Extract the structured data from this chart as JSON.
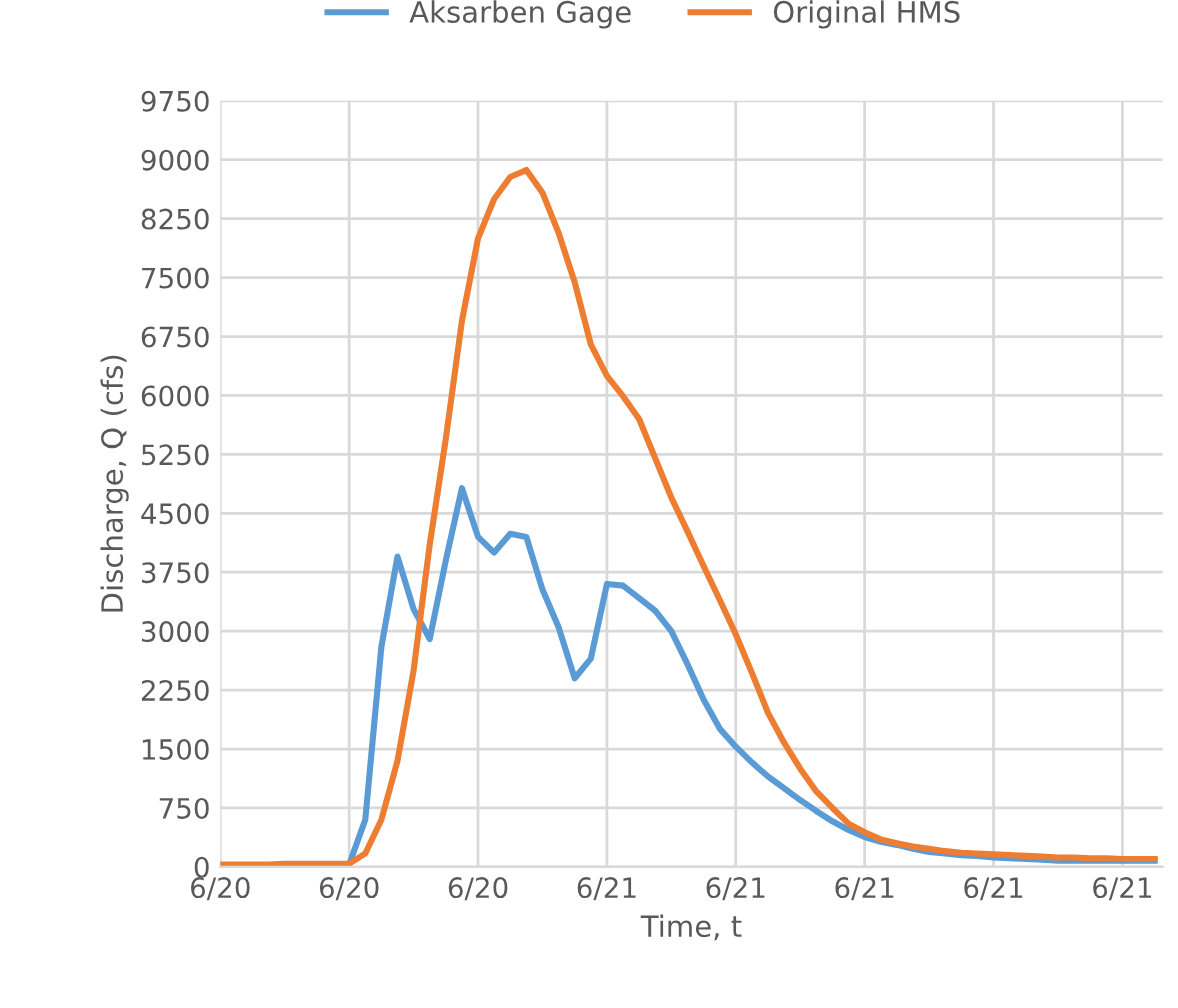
{
  "chart_data": {
    "type": "line",
    "xlabel": "Time, t",
    "ylabel": "Discharge, Q (cfs)",
    "categories": [
      "6/20",
      null,
      null,
      null,
      null,
      null,
      null,
      null,
      "6/20",
      null,
      null,
      null,
      null,
      null,
      null,
      null,
      "6/20",
      null,
      null,
      null,
      null,
      null,
      null,
      null,
      "6/21",
      null,
      null,
      null,
      null,
      null,
      null,
      null,
      "6/21",
      null,
      null,
      null,
      null,
      null,
      null,
      null,
      "6/21",
      null,
      null,
      null,
      null,
      null,
      null,
      null,
      "6/21",
      null,
      null,
      null,
      null,
      null,
      null,
      null,
      "6/21",
      null,
      null
    ],
    "ylim": [
      0,
      9750
    ],
    "yticks": [
      0,
      750,
      1500,
      2250,
      3000,
      3750,
      4500,
      5250,
      6000,
      6750,
      7500,
      8250,
      9000,
      9750
    ],
    "grid": true,
    "legend": "top",
    "marker": "none",
    "line_style": "solid",
    "series": [
      {
        "name": "Aksarben Gage",
        "color": "#5b9bd5",
        "values": [
          null,
          null,
          null,
          null,
          null,
          null,
          30,
          30,
          30,
          600,
          2800,
          3950,
          3280,
          2900,
          3900,
          4820,
          4200,
          4000,
          4240,
          4200,
          3530,
          3050,
          2400,
          2650,
          3600,
          3580,
          3420,
          3260,
          3000,
          2580,
          2130,
          1760,
          1530,
          1330,
          1150,
          1000,
          850,
          710,
          580,
          470,
          380,
          320,
          280,
          230,
          190,
          170,
          150,
          140,
          120,
          110,
          100,
          90,
          80,
          80,
          80,
          80,
          80,
          80,
          80
        ]
      },
      {
        "name": "Original HMS",
        "color": "#ed7d31",
        "values": [
          30,
          30,
          30,
          30,
          40,
          40,
          40,
          40,
          40,
          170,
          600,
          1350,
          2500,
          4100,
          5450,
          6950,
          8000,
          8500,
          8780,
          8870,
          8580,
          8070,
          7440,
          6650,
          6250,
          5990,
          5700,
          5200,
          4700,
          4270,
          3830,
          3400,
          2960,
          2470,
          1960,
          1580,
          1250,
          960,
          750,
          550,
          440,
          350,
          300,
          260,
          230,
          200,
          180,
          170,
          160,
          150,
          140,
          130,
          120,
          120,
          110,
          110,
          100,
          100,
          100
        ]
      }
    ]
  }
}
